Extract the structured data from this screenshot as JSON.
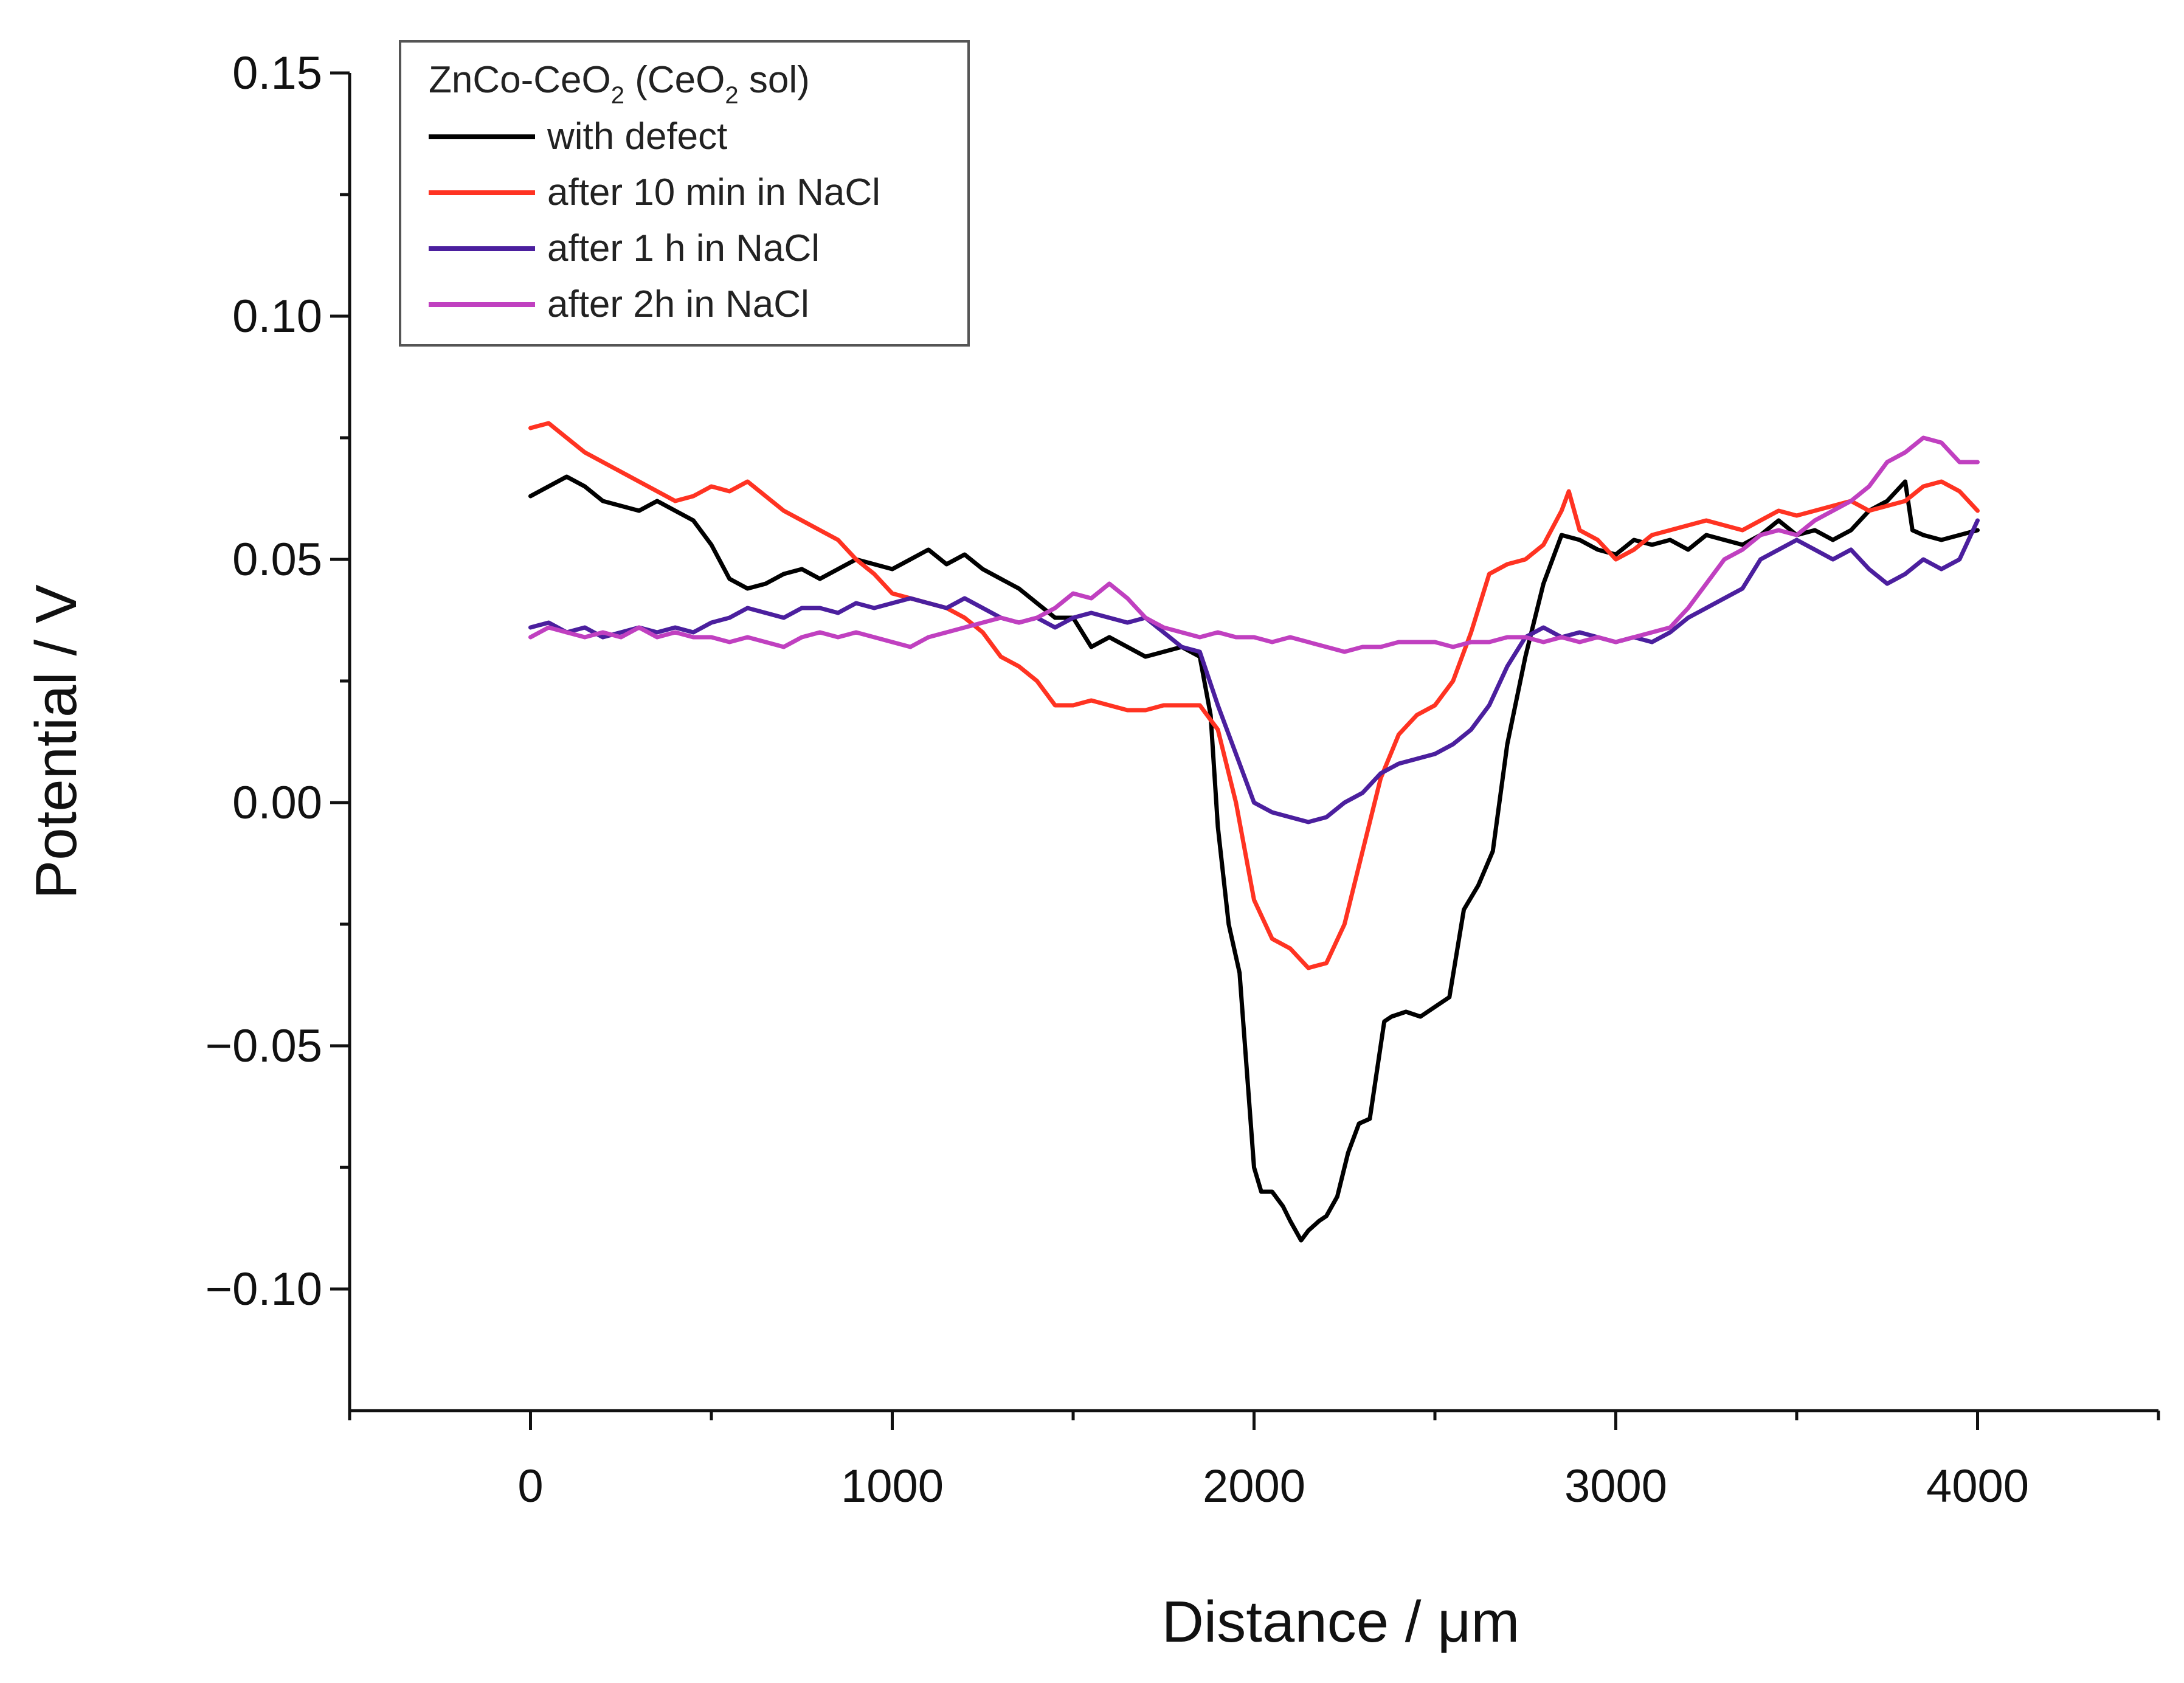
{
  "chart_data": {
    "type": "line",
    "title": "",
    "xlabel": "Distance / μm",
    "ylabel": "Potential / V",
    "xlim": [
      -500,
      4500
    ],
    "ylim": [
      -0.125,
      0.15
    ],
    "xticks": [
      0,
      1000,
      2000,
      3000,
      4000
    ],
    "xtick_labels": [
      "0",
      "1000",
      "2000",
      "3000",
      "4000"
    ],
    "yticks": [
      -0.1,
      -0.05,
      0.0,
      0.05,
      0.1,
      0.15
    ],
    "ytick_labels": [
      "−0.10",
      "−0.05",
      "0.00",
      "0.05",
      "0.10",
      "0.15"
    ],
    "grid": false,
    "legend": {
      "position": "top-left",
      "title_main": "ZnCo-CeO",
      "title_sub": "2",
      "title_mid": " (CeO",
      "title_sub2": "2",
      "title_end": " sol)"
    },
    "series": [
      {
        "name": "with defect",
        "color": "#000000",
        "x": [
          0,
          50,
          100,
          150,
          200,
          250,
          300,
          350,
          400,
          450,
          500,
          550,
          600,
          650,
          700,
          750,
          800,
          850,
          900,
          950,
          1000,
          1050,
          1100,
          1150,
          1200,
          1250,
          1300,
          1350,
          1400,
          1450,
          1500,
          1550,
          1600,
          1650,
          1700,
          1750,
          1800,
          1850,
          1880,
          1900,
          1930,
          1960,
          1980,
          2000,
          2020,
          2050,
          2080,
          2100,
          2130,
          2150,
          2180,
          2200,
          2230,
          2260,
          2290,
          2320,
          2340,
          2360,
          2380,
          2420,
          2460,
          2500,
          2540,
          2580,
          2620,
          2660,
          2700,
          2750,
          2800,
          2850,
          2900,
          2950,
          3000,
          3050,
          3100,
          3150,
          3200,
          3250,
          3300,
          3350,
          3400,
          3450,
          3500,
          3550,
          3600,
          3650,
          3700,
          3750,
          3800,
          3820,
          3850,
          3900,
          3950,
          4000
        ],
        "y": [
          0.063,
          0.065,
          0.067,
          0.065,
          0.062,
          0.061,
          0.06,
          0.062,
          0.06,
          0.058,
          0.053,
          0.046,
          0.044,
          0.045,
          0.047,
          0.048,
          0.046,
          0.048,
          0.05,
          0.049,
          0.048,
          0.05,
          0.052,
          0.049,
          0.051,
          0.048,
          0.046,
          0.044,
          0.041,
          0.038,
          0.038,
          0.032,
          0.034,
          0.032,
          0.03,
          0.031,
          0.032,
          0.03,
          0.018,
          -0.005,
          -0.025,
          -0.035,
          -0.055,
          -0.075,
          -0.08,
          -0.08,
          -0.083,
          -0.086,
          -0.09,
          -0.088,
          -0.086,
          -0.085,
          -0.081,
          -0.072,
          -0.066,
          -0.065,
          -0.055,
          -0.045,
          -0.044,
          -0.043,
          -0.044,
          -0.042,
          -0.04,
          -0.022,
          -0.017,
          -0.01,
          0.012,
          0.03,
          0.045,
          0.055,
          0.054,
          0.052,
          0.051,
          0.054,
          0.053,
          0.054,
          0.052,
          0.055,
          0.054,
          0.053,
          0.055,
          0.058,
          0.055,
          0.056,
          0.054,
          0.056,
          0.06,
          0.062,
          0.066,
          0.056,
          0.055,
          0.054,
          0.055,
          0.056
        ]
      },
      {
        "name": "after 10 min in NaCl",
        "color": "#ff3322",
        "x": [
          0,
          50,
          100,
          150,
          200,
          250,
          300,
          350,
          400,
          450,
          500,
          550,
          600,
          650,
          700,
          750,
          800,
          850,
          900,
          950,
          1000,
          1050,
          1100,
          1150,
          1200,
          1250,
          1300,
          1350,
          1400,
          1450,
          1500,
          1550,
          1600,
          1650,
          1700,
          1750,
          1800,
          1850,
          1900,
          1950,
          2000,
          2050,
          2100,
          2150,
          2200,
          2250,
          2300,
          2350,
          2400,
          2450,
          2500,
          2550,
          2600,
          2650,
          2700,
          2750,
          2800,
          2850,
          2870,
          2900,
          2950,
          3000,
          3050,
          3100,
          3150,
          3200,
          3250,
          3300,
          3350,
          3400,
          3450,
          3500,
          3550,
          3600,
          3650,
          3700,
          3750,
          3800,
          3850,
          3900,
          3950,
          4000
        ],
        "y": [
          0.077,
          0.078,
          0.075,
          0.072,
          0.07,
          0.068,
          0.066,
          0.064,
          0.062,
          0.063,
          0.065,
          0.064,
          0.066,
          0.063,
          0.06,
          0.058,
          0.056,
          0.054,
          0.05,
          0.047,
          0.043,
          0.042,
          0.041,
          0.04,
          0.038,
          0.035,
          0.03,
          0.028,
          0.025,
          0.02,
          0.02,
          0.021,
          0.02,
          0.019,
          0.019,
          0.02,
          0.02,
          0.02,
          0.015,
          0.0,
          -0.02,
          -0.028,
          -0.03,
          -0.034,
          -0.033,
          -0.025,
          -0.01,
          0.005,
          0.014,
          0.018,
          0.02,
          0.025,
          0.035,
          0.047,
          0.049,
          0.05,
          0.053,
          0.06,
          0.064,
          0.056,
          0.054,
          0.05,
          0.052,
          0.055,
          0.056,
          0.057,
          0.058,
          0.057,
          0.056,
          0.058,
          0.06,
          0.059,
          0.06,
          0.061,
          0.062,
          0.06,
          0.061,
          0.062,
          0.065,
          0.066,
          0.064,
          0.06
        ]
      },
      {
        "name": "after 1 h in NaCl",
        "color": "#4b1f9e",
        "x": [
          0,
          50,
          100,
          150,
          200,
          250,
          300,
          350,
          400,
          450,
          500,
          550,
          600,
          650,
          700,
          750,
          800,
          850,
          900,
          950,
          1000,
          1050,
          1100,
          1150,
          1200,
          1250,
          1300,
          1350,
          1400,
          1450,
          1500,
          1550,
          1600,
          1650,
          1700,
          1750,
          1800,
          1850,
          1900,
          1950,
          2000,
          2050,
          2100,
          2150,
          2200,
          2250,
          2300,
          2350,
          2400,
          2450,
          2500,
          2550,
          2600,
          2650,
          2700,
          2750,
          2800,
          2850,
          2900,
          2950,
          3000,
          3050,
          3100,
          3150,
          3200,
          3250,
          3300,
          3350,
          3400,
          3450,
          3500,
          3550,
          3600,
          3650,
          3700,
          3750,
          3800,
          3850,
          3900,
          3950,
          4000
        ],
        "y": [
          0.036,
          0.037,
          0.035,
          0.036,
          0.034,
          0.035,
          0.036,
          0.035,
          0.036,
          0.035,
          0.037,
          0.038,
          0.04,
          0.039,
          0.038,
          0.04,
          0.04,
          0.039,
          0.041,
          0.04,
          0.041,
          0.042,
          0.041,
          0.04,
          0.042,
          0.04,
          0.038,
          0.037,
          0.038,
          0.036,
          0.038,
          0.039,
          0.038,
          0.037,
          0.038,
          0.035,
          0.032,
          0.031,
          0.02,
          0.01,
          0.0,
          -0.002,
          -0.003,
          -0.004,
          -0.003,
          0.0,
          0.002,
          0.006,
          0.008,
          0.009,
          0.01,
          0.012,
          0.015,
          0.02,
          0.028,
          0.034,
          0.036,
          0.034,
          0.035,
          0.034,
          0.033,
          0.034,
          0.033,
          0.035,
          0.038,
          0.04,
          0.042,
          0.044,
          0.05,
          0.052,
          0.054,
          0.052,
          0.05,
          0.052,
          0.048,
          0.045,
          0.047,
          0.05,
          0.048,
          0.05,
          0.058
        ]
      },
      {
        "name": "after 2h in NaCl",
        "color": "#c040c0",
        "x": [
          0,
          50,
          100,
          150,
          200,
          250,
          300,
          350,
          400,
          450,
          500,
          550,
          600,
          650,
          700,
          750,
          800,
          850,
          900,
          950,
          1000,
          1050,
          1100,
          1150,
          1200,
          1250,
          1300,
          1350,
          1400,
          1450,
          1500,
          1550,
          1600,
          1650,
          1700,
          1750,
          1800,
          1850,
          1900,
          1950,
          2000,
          2050,
          2100,
          2150,
          2200,
          2250,
          2300,
          2350,
          2400,
          2450,
          2500,
          2550,
          2600,
          2650,
          2700,
          2750,
          2800,
          2850,
          2900,
          2950,
          3000,
          3050,
          3100,
          3150,
          3200,
          3250,
          3300,
          3350,
          3400,
          3450,
          3500,
          3550,
          3600,
          3650,
          3700,
          3750,
          3800,
          3850,
          3900,
          3950,
          4000
        ],
        "y": [
          0.034,
          0.036,
          0.035,
          0.034,
          0.035,
          0.034,
          0.036,
          0.034,
          0.035,
          0.034,
          0.034,
          0.033,
          0.034,
          0.033,
          0.032,
          0.034,
          0.035,
          0.034,
          0.035,
          0.034,
          0.033,
          0.032,
          0.034,
          0.035,
          0.036,
          0.037,
          0.038,
          0.037,
          0.038,
          0.04,
          0.043,
          0.042,
          0.045,
          0.042,
          0.038,
          0.036,
          0.035,
          0.034,
          0.035,
          0.034,
          0.034,
          0.033,
          0.034,
          0.033,
          0.032,
          0.031,
          0.032,
          0.032,
          0.033,
          0.033,
          0.033,
          0.032,
          0.033,
          0.033,
          0.034,
          0.034,
          0.033,
          0.034,
          0.033,
          0.034,
          0.033,
          0.034,
          0.035,
          0.036,
          0.04,
          0.045,
          0.05,
          0.052,
          0.055,
          0.056,
          0.055,
          0.058,
          0.06,
          0.062,
          0.065,
          0.07,
          0.072,
          0.075,
          0.074,
          0.07,
          0.07
        ]
      }
    ]
  }
}
